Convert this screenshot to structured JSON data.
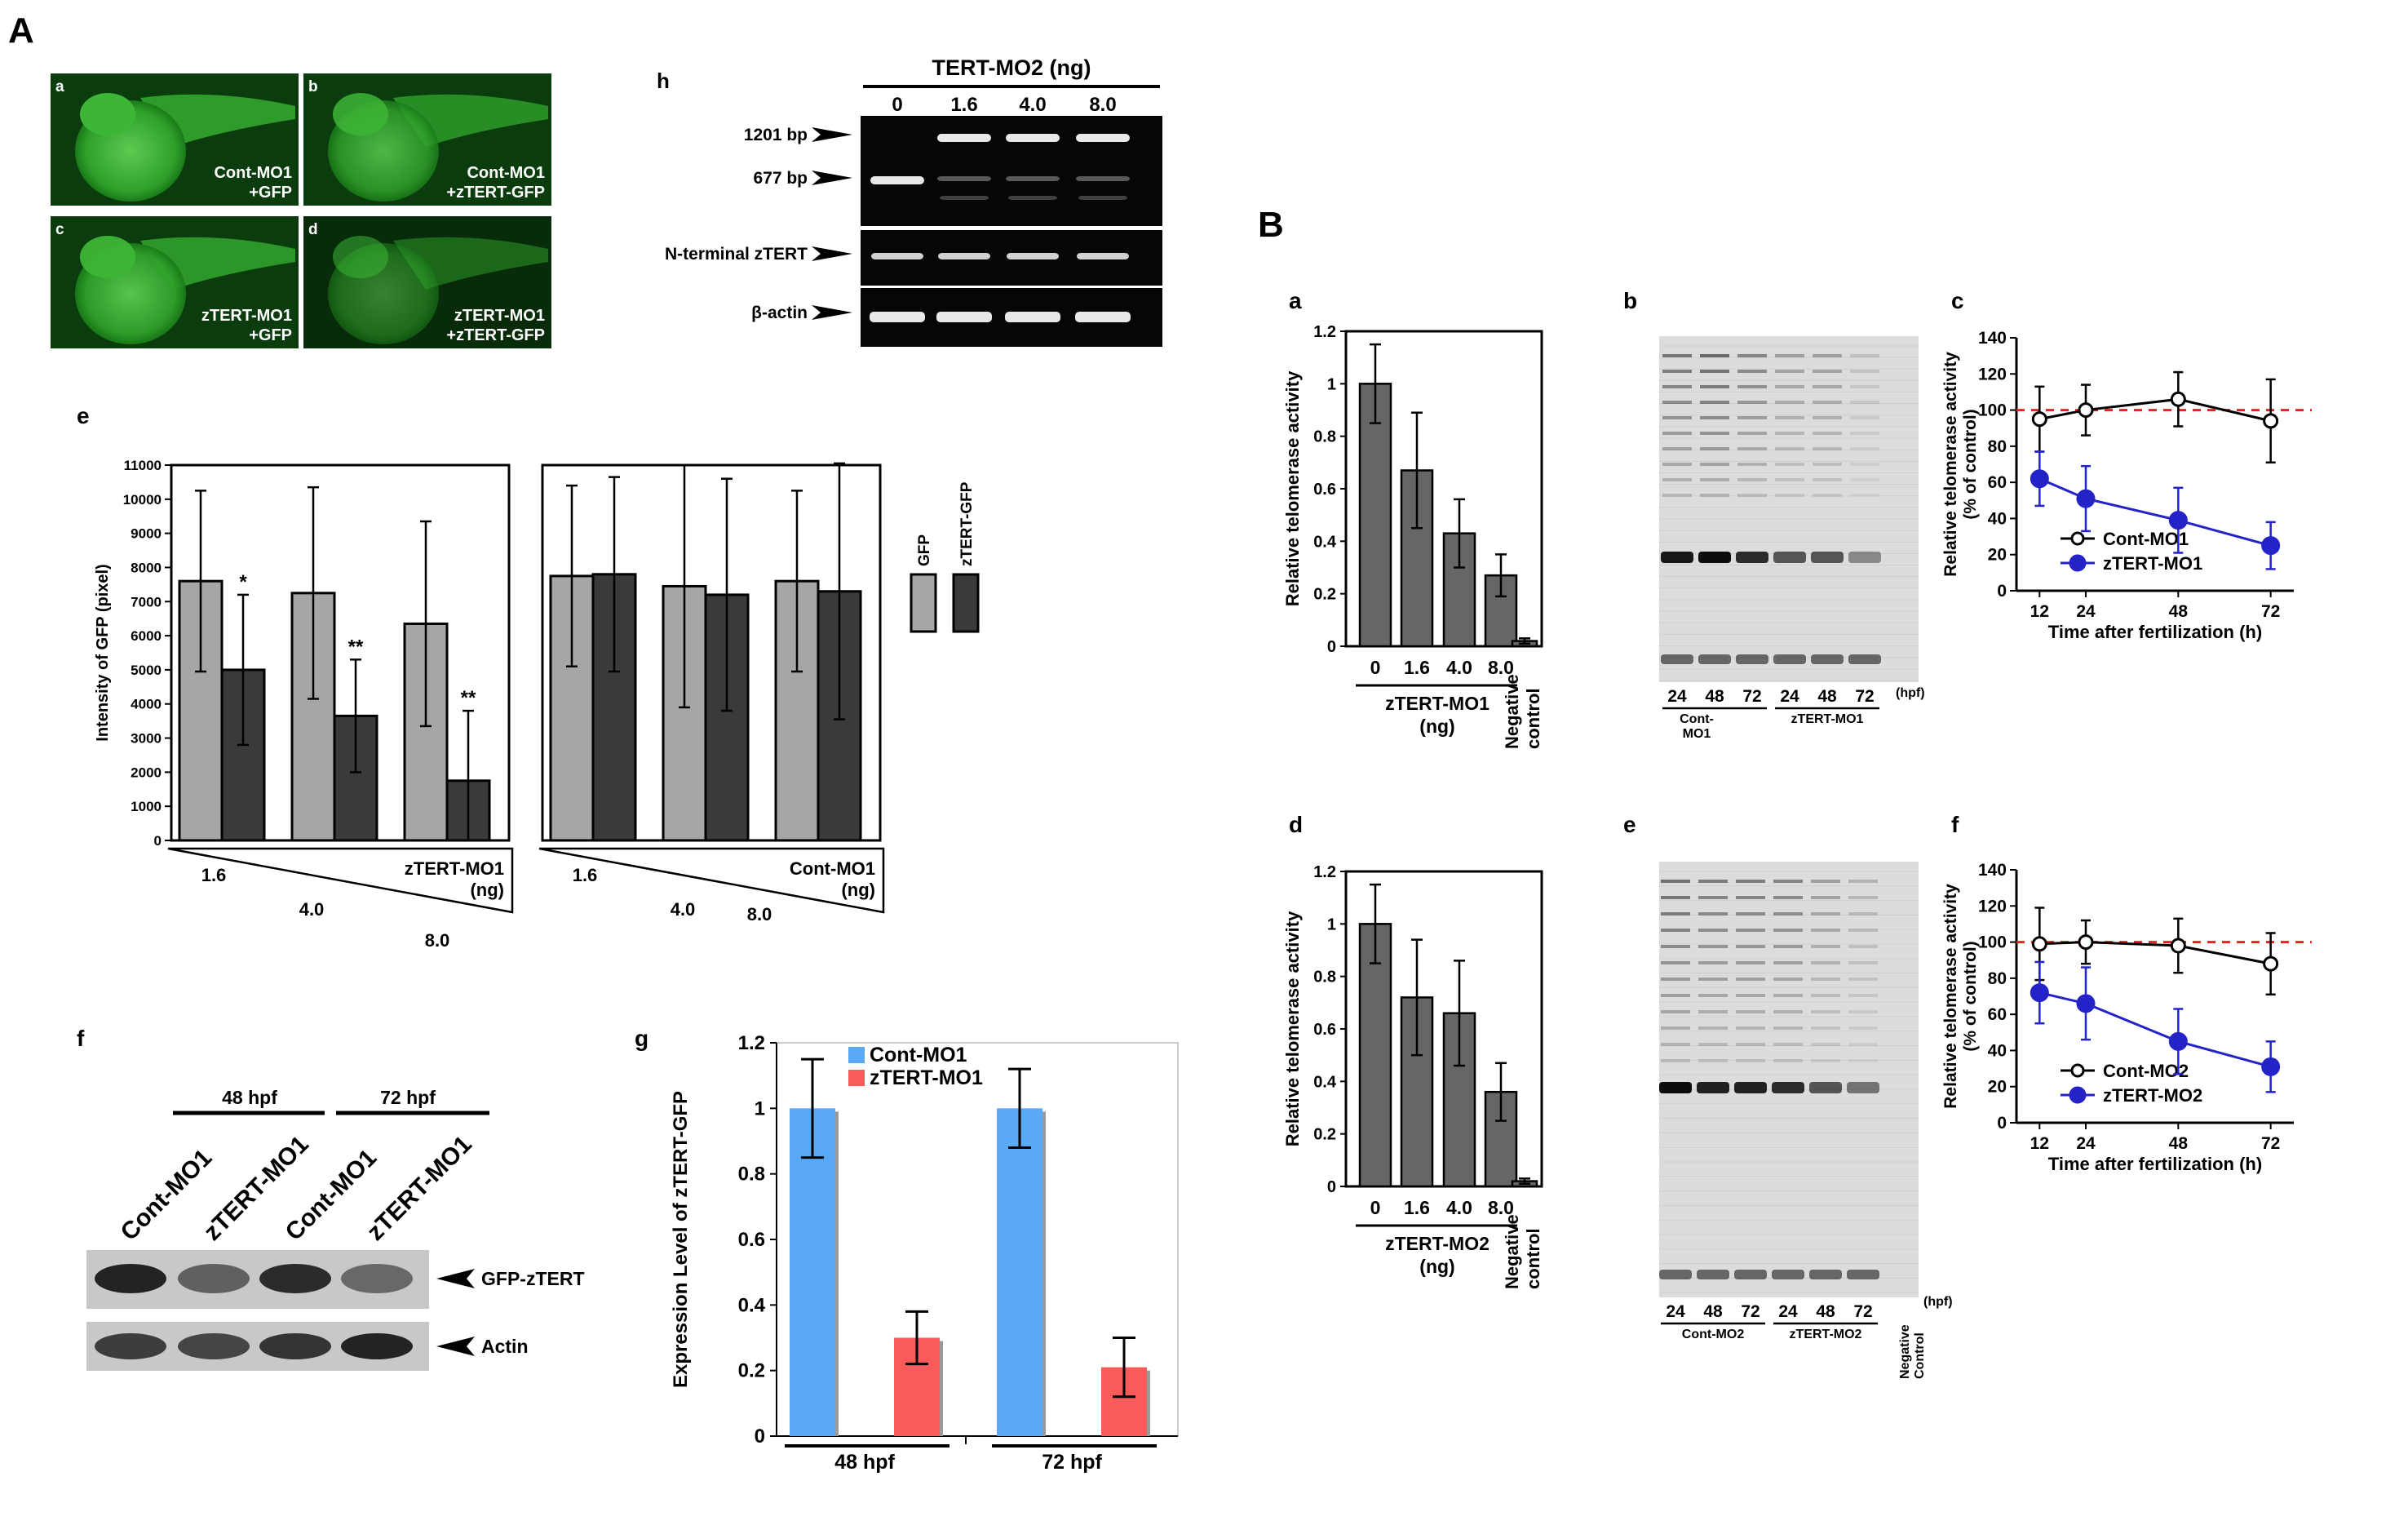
{
  "sections": {
    "A": "A",
    "B": "B"
  },
  "panel_letters": {
    "e": "e",
    "f": "f",
    "g": "g",
    "h": "h",
    "Ba": "a",
    "Bb": "b",
    "Bc": "c",
    "Bd": "d",
    "Be": "e",
    "Bf": "f"
  },
  "micrographs": [
    {
      "letter": "a",
      "line1": "Cont-MO1",
      "line2": "+GFP"
    },
    {
      "letter": "b",
      "line1": "Cont-MO1",
      "line2": "+zTERT-GFP"
    },
    {
      "letter": "c",
      "line1": "zTERT-MO1",
      "line2": "+GFP"
    },
    {
      "letter": "d",
      "line1": "zTERT-MO1",
      "line2": "+zTERT-GFP"
    }
  ],
  "gel_h": {
    "title": "TERT-MO2 (ng)",
    "lanes": [
      "0",
      "1.6",
      "4.0",
      "8.0"
    ],
    "rows": [
      "1201 bp",
      "677 bp",
      "N-terminal zTERT",
      "β-actin"
    ]
  },
  "western_f": {
    "timepoints": [
      "48 hpf",
      "72 hpf"
    ],
    "lanes": [
      "Cont-MO1",
      "zTERT-MO1",
      "Cont-MO1",
      "zTERT-MO1"
    ],
    "bands": [
      "GFP-zTERT",
      "Actin"
    ]
  },
  "gel_Bb": {
    "lanes": [
      "24",
      "48",
      "72",
      "24",
      "48",
      "72"
    ],
    "unit": "(hpf)",
    "group1": "Cont-\nMO1",
    "group2": "zTERT-MO1"
  },
  "gel_Be": {
    "lanes": [
      "24",
      "48",
      "72",
      "24",
      "48",
      "72"
    ],
    "unit": "(hpf)",
    "group1": "Cont-MO2",
    "group2": "zTERT-MO2",
    "neg": "Negative\nControl"
  },
  "chart_data": [
    {
      "id": "Ae-left",
      "type": "bar",
      "ylabel": "Intensity of GFP (pixel)",
      "ylim": [
        0,
        11000
      ],
      "yticks": [
        0,
        1000,
        2000,
        3000,
        4000,
        5000,
        6000,
        7000,
        8000,
        9000,
        10000,
        11000
      ],
      "categories": [
        "1.6",
        "4.0",
        "8.0"
      ],
      "group_label": "zTERT-MO1\n(ng)",
      "series": [
        {
          "name": "GFP",
          "color": "#a6a6a6",
          "values": [
            7600,
            7250,
            6350
          ],
          "err": [
            2650,
            3100,
            3000
          ]
        },
        {
          "name": "zTERT-GFP",
          "color": "#3a3a3a",
          "values": [
            5000,
            3650,
            1750
          ],
          "err": [
            2200,
            1650,
            2050
          ]
        }
      ],
      "sig": [
        "*",
        "**",
        "**"
      ]
    },
    {
      "id": "Ae-right",
      "type": "bar",
      "ylim": [
        0,
        11000
      ],
      "categories": [
        "1.6",
        "4.0",
        "8.0"
      ],
      "group_label": "Cont-MO1\n(ng)",
      "series": [
        {
          "name": "GFP",
          "color": "#a6a6a6",
          "values": [
            7750,
            7450,
            7600
          ],
          "err": [
            2650,
            3550,
            2650
          ]
        },
        {
          "name": "zTERT-GFP",
          "color": "#3a3a3a",
          "values": [
            7800,
            7200,
            7300
          ],
          "err": [
            2850,
            3400,
            3750
          ]
        }
      ],
      "legend": [
        "GFP",
        "zTERT-GFP"
      ]
    },
    {
      "id": "Ag",
      "type": "bar",
      "ylabel": "Expression Level of zTERT-GFP",
      "ylim": [
        0,
        1.2
      ],
      "yticks": [
        "0",
        "0.2",
        "0.4",
        "0.6",
        "0.8",
        "1",
        "1.2"
      ],
      "categories": [
        "48 hpf",
        "72 hpf"
      ],
      "series": [
        {
          "name": "Cont-MO1",
          "color": "#5aa9f4",
          "values": [
            1.0,
            1.0
          ],
          "err": [
            0.15,
            0.12
          ]
        },
        {
          "name": "zTERT-MO1",
          "color": "#f95a5a",
          "values": [
            0.3,
            0.21
          ],
          "err": [
            0.08,
            0.09
          ]
        }
      ]
    },
    {
      "id": "Ba",
      "type": "bar",
      "ylabel": "Relative telomerase activity",
      "ylim": [
        0,
        1.2
      ],
      "yticks": [
        "0",
        "0.2",
        "0.4",
        "0.6",
        "0.8",
        "1",
        "1.2"
      ],
      "categories": [
        "0",
        "1.6",
        "4.0",
        "8.0",
        "Negative\ncontrol"
      ],
      "values": [
        1.0,
        0.67,
        0.43,
        0.27,
        0.02
      ],
      "err": [
        0.15,
        0.22,
        0.13,
        0.08,
        0.01
      ],
      "xlabel": "zTERT-MO1\n(ng)"
    },
    {
      "id": "Bd",
      "type": "bar",
      "ylabel": "Relative telomerase activity",
      "ylim": [
        0,
        1.2
      ],
      "yticks": [
        "0",
        "0.2",
        "0.4",
        "0.6",
        "0.8",
        "1",
        "1.2"
      ],
      "categories": [
        "0",
        "1.6",
        "4.0",
        "8.0",
        "Negative\ncontrol"
      ],
      "values": [
        1.0,
        0.72,
        0.66,
        0.36,
        0.02
      ],
      "err": [
        0.15,
        0.22,
        0.2,
        0.11,
        0.01
      ],
      "xlabel": "zTERT-MO2\n(ng)"
    },
    {
      "id": "Bc",
      "type": "line",
      "ylabel": "Relative telomerase activity\n(% of control)",
      "xlabel": "Time after fertilization (h)",
      "x": [
        12,
        24,
        48,
        72
      ],
      "xlim": [
        6,
        78
      ],
      "ylim": [
        0,
        140
      ],
      "yticks": [
        0,
        20,
        40,
        60,
        80,
        100,
        120,
        140
      ],
      "series": [
        {
          "name": "Cont-MO1",
          "values": [
            95,
            100,
            106,
            94
          ],
          "err": [
            18,
            14,
            15,
            23
          ]
        },
        {
          "name": "zTERT-MO1",
          "values": [
            62,
            51,
            39,
            25
          ],
          "err": [
            15,
            18,
            18,
            13
          ]
        }
      ],
      "reference": 100
    },
    {
      "id": "Bf",
      "type": "line",
      "ylabel": "Relative telomerase activity\n(% of control)",
      "xlabel": "Time after fertilization (h)",
      "x": [
        12,
        24,
        48,
        72
      ],
      "xlim": [
        6,
        78
      ],
      "ylim": [
        0,
        140
      ],
      "yticks": [
        0,
        20,
        40,
        60,
        80,
        100,
        120,
        140
      ],
      "series": [
        {
          "name": "Cont-MO2",
          "values": [
            99,
            100,
            98,
            88
          ],
          "err": [
            20,
            12,
            15,
            17
          ]
        },
        {
          "name": "zTERT-MO2",
          "values": [
            72,
            66,
            45,
            31
          ],
          "err": [
            17,
            20,
            18,
            14
          ]
        }
      ],
      "reference": 100
    }
  ]
}
